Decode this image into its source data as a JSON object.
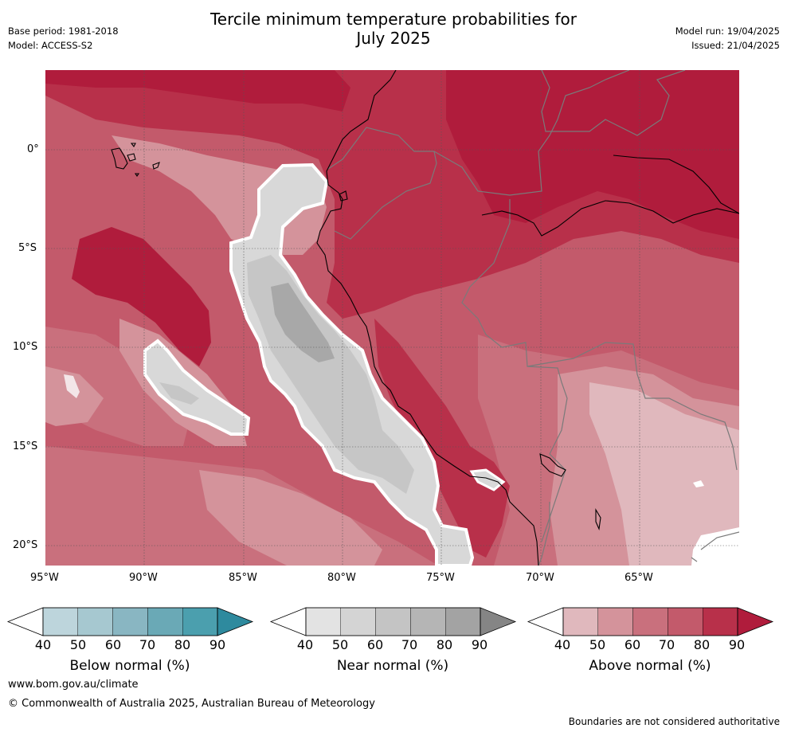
{
  "header": {
    "title_line1": "Tercile minimum temperature probabilities for",
    "title_line2": "July 2025",
    "base_period": "Base period: 1981-2018",
    "model": "Model: ACCESS-S2",
    "model_run": "Model run: 19/04/2025",
    "issued": "Issued: 21/04/2025"
  },
  "map": {
    "lat_labels": [
      "0°",
      "5°S",
      "10°S",
      "15°S",
      "20°S"
    ],
    "lon_labels": [
      "95°W",
      "90°W",
      "85°W",
      "80°W",
      "75°W",
      "70°W",
      "65°W"
    ],
    "lat_values": [
      0,
      -5,
      -10,
      -15,
      -20
    ],
    "lon_values": [
      -95,
      -90,
      -85,
      -80,
      -75,
      -70,
      -65
    ],
    "extent": {
      "lon_min": -95,
      "lon_max": -60,
      "lat_min": -21,
      "lat_max": 4
    }
  },
  "colorbars": [
    {
      "label": "Below normal (%)",
      "ticks": [
        "40",
        "50",
        "60",
        "70",
        "80",
        "90"
      ],
      "colors": [
        "#ffffff",
        "#bdd5dc",
        "#a6c8d0",
        "#89b6c2",
        "#6aa9b6",
        "#4b9fae",
        "#2e8a9e"
      ]
    },
    {
      "label": "Near normal (%)",
      "ticks": [
        "40",
        "50",
        "60",
        "70",
        "80",
        "90"
      ],
      "colors": [
        "#ffffff",
        "#e3e3e3",
        "#d4d4d4",
        "#c4c4c4",
        "#b5b5b5",
        "#a3a3a3",
        "#858585"
      ]
    },
    {
      "label": "Above normal (%)",
      "ticks": [
        "40",
        "50",
        "60",
        "70",
        "80",
        "90"
      ],
      "colors": [
        "#ffffff",
        "#e0b8bd",
        "#d4939b",
        "#c9707d",
        "#c35a6b",
        "#b8304a",
        "#b01c3c"
      ]
    }
  ],
  "footer": {
    "website": "www.bom.gov.au/climate",
    "copyright": "© Commonwealth of Australia 2025, Australian Bureau of Meteorology",
    "disclaimer": "Boundaries are not considered authoritative"
  }
}
